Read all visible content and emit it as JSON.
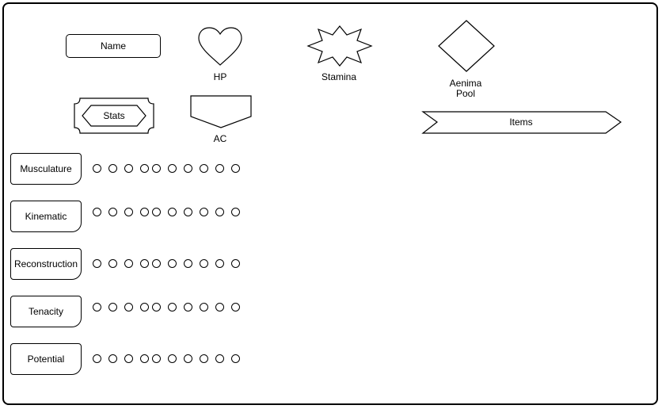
{
  "shapes": {
    "name": "Name",
    "hp": "HP",
    "stamina": "Stamina",
    "aenima_pool_line1": "Aenima",
    "aenima_pool_line2": "Pool",
    "stats": "Stats",
    "ac": "AC",
    "items": "Items"
  },
  "stats_rows": [
    {
      "label": "Musculature",
      "pips": 10
    },
    {
      "label": "Kinematic",
      "pips": 10
    },
    {
      "label": "Reconstruction",
      "pips": 10
    },
    {
      "label": "Tenacity",
      "pips": 10
    },
    {
      "label": "Potential",
      "pips": 10
    }
  ]
}
